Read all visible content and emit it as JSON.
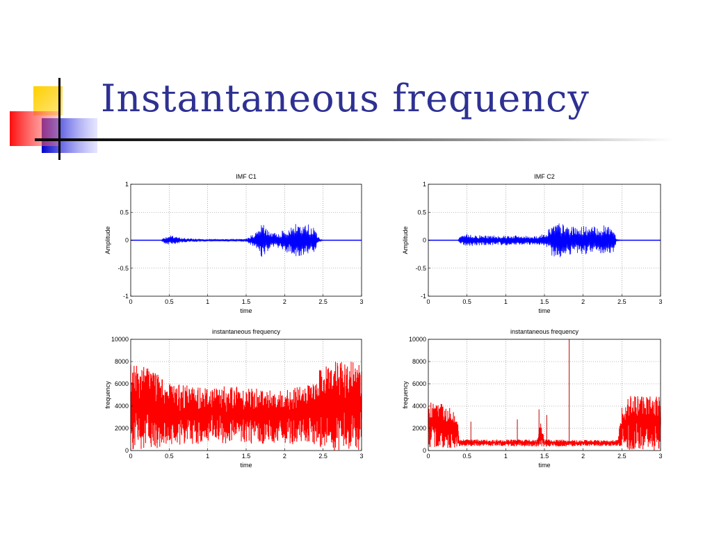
{
  "slide": {
    "title": "Instantaneous frequency",
    "title_color": "#2e3192"
  },
  "chart_data": [
    {
      "type": "line",
      "title": "IMF C1",
      "xlabel": "time",
      "ylabel": "Amplitude",
      "xlim": [
        0,
        3
      ],
      "ylim": [
        -1,
        1
      ],
      "xticks": [
        "0",
        "0.5",
        "1",
        "1.5",
        "2",
        "2.5",
        "3"
      ],
      "yticks": [
        "-1",
        "-0.5",
        "0",
        "0.5",
        "1"
      ],
      "grid": true,
      "color": "#0000ff",
      "series": [
        {
          "envelope": [
            [
              0.0,
              0.0
            ],
            [
              0.4,
              0.0
            ],
            [
              0.42,
              0.05
            ],
            [
              0.5,
              0.09
            ],
            [
              0.6,
              0.06
            ],
            [
              0.7,
              0.04
            ],
            [
              0.8,
              0.03
            ],
            [
              0.9,
              0.03
            ],
            [
              1.0,
              0.02
            ],
            [
              1.1,
              0.02
            ],
            [
              1.2,
              0.02
            ],
            [
              1.3,
              0.02
            ],
            [
              1.4,
              0.02
            ],
            [
              1.5,
              0.03
            ],
            [
              1.55,
              0.08
            ],
            [
              1.6,
              0.12
            ],
            [
              1.65,
              0.15
            ],
            [
              1.7,
              0.3
            ],
            [
              1.75,
              0.25
            ],
            [
              1.8,
              0.2
            ],
            [
              1.85,
              0.12
            ],
            [
              1.9,
              0.15
            ],
            [
              1.95,
              0.12
            ],
            [
              2.0,
              0.3
            ],
            [
              2.05,
              0.2
            ],
            [
              2.1,
              0.25
            ],
            [
              2.15,
              0.3
            ],
            [
              2.2,
              0.3
            ],
            [
              2.25,
              0.27
            ],
            [
              2.3,
              0.3
            ],
            [
              2.35,
              0.25
            ],
            [
              2.4,
              0.2
            ],
            [
              2.45,
              0.03
            ],
            [
              2.5,
              0.0
            ],
            [
              3.0,
              0.0
            ]
          ]
        }
      ]
    },
    {
      "type": "line",
      "title": "IMF C2",
      "xlabel": "time",
      "ylabel": "Amplitude",
      "xlim": [
        0,
        3
      ],
      "ylim": [
        -1,
        1
      ],
      "xticks": [
        "0",
        "0.5",
        "1",
        "1.5",
        "2",
        "2.5",
        "3"
      ],
      "yticks": [
        "-1",
        "-0.5",
        "0",
        "0.5",
        "1"
      ],
      "grid": true,
      "color": "#0000ff",
      "series": [
        {
          "envelope": [
            [
              0.0,
              0.0
            ],
            [
              0.38,
              0.0
            ],
            [
              0.4,
              0.05
            ],
            [
              0.5,
              0.12
            ],
            [
              0.6,
              0.1
            ],
            [
              0.7,
              0.09
            ],
            [
              0.8,
              0.09
            ],
            [
              0.9,
              0.09
            ],
            [
              1.0,
              0.09
            ],
            [
              1.1,
              0.09
            ],
            [
              1.2,
              0.08
            ],
            [
              1.3,
              0.08
            ],
            [
              1.4,
              0.08
            ],
            [
              1.5,
              0.12
            ],
            [
              1.55,
              0.2
            ],
            [
              1.6,
              0.28
            ],
            [
              1.65,
              0.3
            ],
            [
              1.7,
              0.32
            ],
            [
              1.75,
              0.28
            ],
            [
              1.8,
              0.26
            ],
            [
              1.85,
              0.25
            ],
            [
              1.9,
              0.24
            ],
            [
              1.95,
              0.24
            ],
            [
              2.0,
              0.26
            ],
            [
              2.1,
              0.24
            ],
            [
              2.2,
              0.25
            ],
            [
              2.3,
              0.27
            ],
            [
              2.35,
              0.28
            ],
            [
              2.4,
              0.2
            ],
            [
              2.43,
              0.02
            ],
            [
              2.5,
              0.0
            ],
            [
              3.0,
              0.0
            ]
          ]
        }
      ]
    },
    {
      "type": "line",
      "title": "instantaneous frequency",
      "xlabel": "time",
      "ylabel": "frequency",
      "xlim": [
        0,
        3
      ],
      "ylim": [
        0,
        10000
      ],
      "xticks": [
        "0",
        "0.5",
        "1",
        "1.5",
        "2",
        "2.5",
        "3"
      ],
      "yticks": [
        "0",
        "2000",
        "4000",
        "6000",
        "8000",
        "10000"
      ],
      "grid": true,
      "color": "#ff0000",
      "series": [
        {
          "band": [
            [
              0.0,
              0,
              7800
            ],
            [
              0.3,
              0,
              7600
            ],
            [
              0.4,
              300,
              6500
            ],
            [
              0.5,
              500,
              6000
            ],
            [
              1.0,
              600,
              5800
            ],
            [
              1.5,
              600,
              5800
            ],
            [
              2.0,
              600,
              5500
            ],
            [
              2.4,
              500,
              6000
            ],
            [
              2.45,
              300,
              7500
            ],
            [
              2.6,
              0,
              8000
            ],
            [
              3.0,
              0,
              8000
            ]
          ]
        }
      ]
    },
    {
      "type": "line",
      "title": "instantaneous frequency",
      "xlabel": "time",
      "ylabel": "frequency",
      "xlim": [
        0,
        3
      ],
      "ylim": [
        0,
        10000
      ],
      "xticks": [
        "0",
        "0.5",
        "1",
        "1.5",
        "2",
        "2.5",
        "3"
      ],
      "yticks": [
        "0",
        "2000",
        "4000",
        "6000",
        "8000",
        "10000"
      ],
      "grid": true,
      "color": "#ff0000",
      "series": [
        {
          "band": [
            [
              0.0,
              200,
              4500
            ],
            [
              0.3,
              200,
              4000
            ],
            [
              0.38,
              300,
              2500
            ],
            [
              0.4,
              350,
              1000
            ],
            [
              0.5,
              400,
              1000
            ],
            [
              1.0,
              400,
              1000
            ],
            [
              1.4,
              350,
              1000
            ],
            [
              1.45,
              300,
              2500
            ],
            [
              1.5,
              350,
              1000
            ],
            [
              2.0,
              400,
              950
            ],
            [
              2.45,
              400,
              950
            ],
            [
              2.5,
              300,
              4000
            ],
            [
              2.6,
              0,
              5000
            ],
            [
              3.0,
              0,
              5000
            ]
          ],
          "spikes": [
            [
              1.82,
              10000
            ],
            [
              1.43,
              3700
            ],
            [
              1.53,
              3200
            ],
            [
              0.55,
              2600
            ],
            [
              1.15,
              2800
            ]
          ]
        }
      ]
    }
  ]
}
